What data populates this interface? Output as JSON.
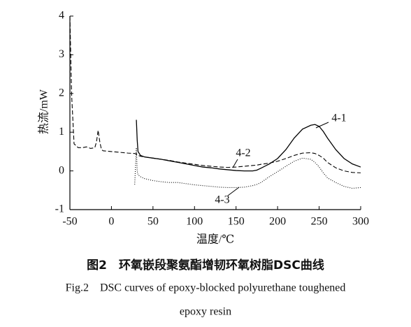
{
  "chart_data": {
    "type": "line",
    "ylabel": "热流/mW",
    "xlabel": "温度/℃",
    "caption_zh": "图2　环氧嵌段聚氨酯增韧环氧树脂DSC曲线",
    "caption_en": [
      "Fig.2　DSC curves of epoxy-blocked polyurethane toughened",
      "epoxy resin"
    ],
    "xlim": [
      -50,
      300
    ],
    "xticks": [
      -50,
      0,
      50,
      100,
      150,
      200,
      250,
      300
    ],
    "ylim": [
      -1,
      4
    ],
    "yticks": [
      -1,
      0,
      1,
      2,
      3,
      4
    ],
    "x": [
      -50,
      -48,
      -45,
      -40,
      -35,
      -30,
      -25,
      -20,
      -18,
      -16,
      -14,
      -12,
      -10,
      0,
      10,
      20,
      28,
      30,
      31,
      32,
      35,
      40,
      50,
      60,
      70,
      80,
      90,
      100,
      110,
      120,
      130,
      140,
      150,
      160,
      170,
      175,
      180,
      190,
      200,
      210,
      220,
      230,
      240,
      245,
      250,
      255,
      260,
      270,
      280,
      290,
      300
    ],
    "series": [
      {
        "name": "4-1",
        "color": "#000000",
        "linestyle": "solid",
        "values": [
          null,
          null,
          null,
          null,
          null,
          null,
          null,
          null,
          null,
          null,
          null,
          null,
          null,
          null,
          null,
          null,
          null,
          1.32,
          0.8,
          0.5,
          0.4,
          0.36,
          0.33,
          0.3,
          0.26,
          0.22,
          0.18,
          0.14,
          0.1,
          0.08,
          0.05,
          0.03,
          0.01,
          0.0,
          0.0,
          0.02,
          0.07,
          0.18,
          0.32,
          0.55,
          0.85,
          1.08,
          1.18,
          1.2,
          1.15,
          1.02,
          0.85,
          0.55,
          0.32,
          0.18,
          0.1
        ]
      },
      {
        "name": "4-2",
        "color": "#000000",
        "linestyle": "dashed",
        "values": [
          4.0,
          2.0,
          0.7,
          0.6,
          0.6,
          0.62,
          0.58,
          0.6,
          0.75,
          1.05,
          0.75,
          0.55,
          0.52,
          0.5,
          0.48,
          0.46,
          0.45,
          0.44,
          0.42,
          0.4,
          0.38,
          0.36,
          0.33,
          0.3,
          0.27,
          0.23,
          0.2,
          0.17,
          0.14,
          0.12,
          0.1,
          0.09,
          0.1,
          0.12,
          0.14,
          0.15,
          0.17,
          0.2,
          0.25,
          0.32,
          0.4,
          0.46,
          0.47,
          0.45,
          0.4,
          0.33,
          0.22,
          0.08,
          0.0,
          -0.04,
          -0.05
        ]
      },
      {
        "name": "4-3",
        "color": "#000000",
        "linestyle": "dotted",
        "values": [
          null,
          null,
          null,
          null,
          null,
          null,
          null,
          null,
          null,
          null,
          null,
          null,
          null,
          null,
          null,
          null,
          -0.35,
          0.6,
          0.0,
          -0.1,
          -0.15,
          -0.2,
          -0.25,
          -0.28,
          -0.3,
          -0.3,
          -0.33,
          -0.36,
          -0.38,
          -0.4,
          -0.42,
          -0.43,
          -0.43,
          -0.42,
          -0.38,
          -0.35,
          -0.3,
          -0.15,
          -0.02,
          0.12,
          0.25,
          0.33,
          0.3,
          0.22,
          0.1,
          -0.05,
          -0.18,
          -0.3,
          -0.4,
          -0.45,
          -0.43
        ]
      }
    ]
  }
}
